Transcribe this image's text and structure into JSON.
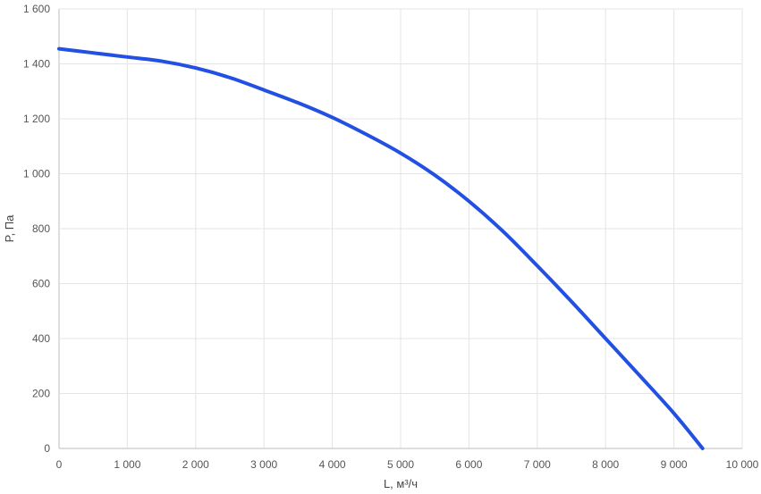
{
  "chart_data": {
    "type": "line",
    "xlabel": "L, м³/ч",
    "ylabel": "P, Па",
    "xlim": [
      0,
      10000
    ],
    "ylim": [
      0,
      1600
    ],
    "x_ticks": [
      0,
      1000,
      2000,
      3000,
      4000,
      5000,
      6000,
      7000,
      8000,
      9000,
      10000
    ],
    "x_tick_labels": [
      "0",
      "1 000",
      "2 000",
      "3 000",
      "4 000",
      "5 000",
      "6 000",
      "7 000",
      "8 000",
      "9 000",
      "10 000"
    ],
    "y_ticks": [
      0,
      200,
      400,
      600,
      800,
      1000,
      1200,
      1400,
      1600
    ],
    "y_tick_labels": [
      "0",
      "200",
      "400",
      "600",
      "800",
      "1 000",
      "1 200",
      "1 400",
      "1 600"
    ],
    "grid": true,
    "series": [
      {
        "color": "#2150e3",
        "x": [
          0,
          500,
          1000,
          1500,
          2000,
          2500,
          3000,
          3500,
          4000,
          4500,
          5000,
          5500,
          6000,
          6500,
          7000,
          7500,
          8000,
          8500,
          9000,
          9420
        ],
        "y": [
          1455,
          1440,
          1425,
          1410,
          1385,
          1350,
          1305,
          1258,
          1205,
          1143,
          1075,
          995,
          900,
          790,
          665,
          535,
          400,
          265,
          128,
          0
        ]
      }
    ]
  }
}
